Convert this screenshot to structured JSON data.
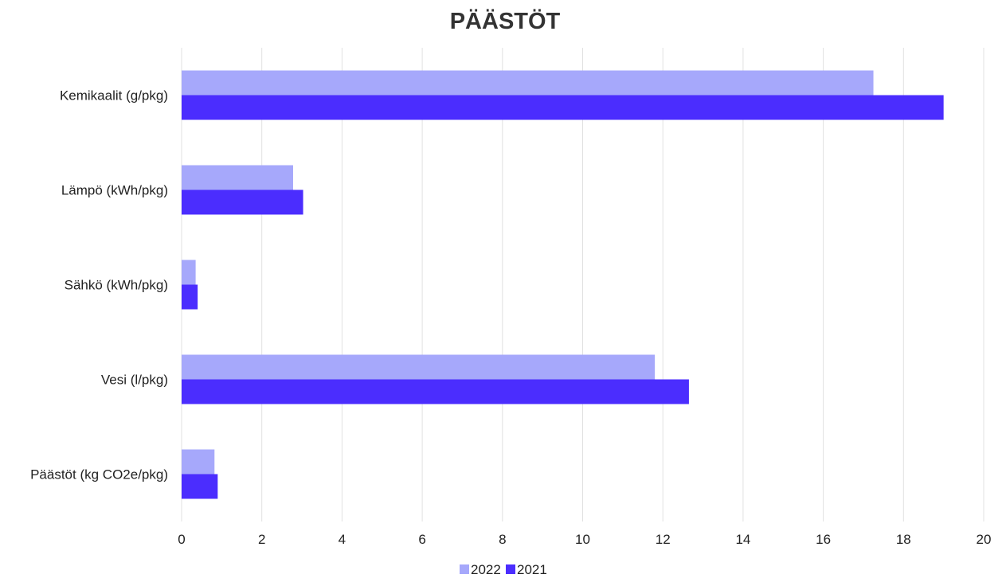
{
  "chart_data": {
    "type": "bar",
    "orientation": "horizontal",
    "title": "PÄÄSTÖT",
    "categories": [
      "Kemikaalit (g/pkg)",
      "Lämpö (kWh/pkg)",
      "Sähkö (kWh/pkg)",
      "Vesi (l/pkg)",
      "Päästöt (kg CO2e/pkg)"
    ],
    "series": [
      {
        "name": "2022",
        "color": "#a6a8fb",
        "values": [
          17.25,
          2.78,
          0.35,
          11.8,
          0.82
        ]
      },
      {
        "name": "2021",
        "color": "#4b2dfe",
        "values": [
          19.0,
          3.03,
          0.4,
          12.65,
          0.9
        ]
      }
    ],
    "xlim": [
      0,
      20
    ],
    "xticks": [
      "0",
      "2",
      "4",
      "6",
      "8",
      "10",
      "12",
      "14",
      "16",
      "18",
      "20"
    ],
    "xlabel": "",
    "ylabel": "",
    "grid": "vertical",
    "legend": "bottom-center"
  }
}
